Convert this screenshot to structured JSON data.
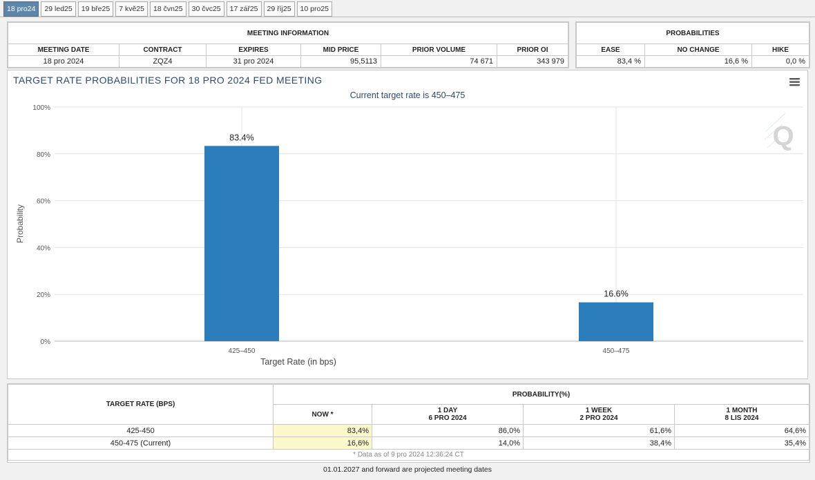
{
  "tabs": [
    "18 pro24",
    "29 led25",
    "19 bře25",
    "7 kvě25",
    "18 čvn25",
    "30 čvc25",
    "17 zář25",
    "29 říj25",
    "10 pro25"
  ],
  "meeting_info": {
    "title": "MEETING INFORMATION",
    "headers": [
      "MEETING DATE",
      "CONTRACT",
      "EXPIRES",
      "MID PRICE",
      "PRIOR VOLUME",
      "PRIOR OI"
    ],
    "values": [
      "18 pro 2024",
      "ZQZ4",
      "31 pro 2024",
      "95,5113",
      "74 671",
      "343 979"
    ]
  },
  "probabilities": {
    "title": "PROBABILITIES",
    "headers": [
      "EASE",
      "NO CHANGE",
      "HIKE"
    ],
    "values": [
      "83,4 %",
      "16,6 %",
      "0,0 %"
    ]
  },
  "chart_data": {
    "type": "bar",
    "title": "TARGET RATE PROBABILITIES FOR 18 PRO 2024 FED MEETING",
    "subtitle": "Current target rate is 450–475",
    "xlabel": "Target Rate (in bps)",
    "ylabel": "Probability",
    "categories": [
      "425–450",
      "450–475"
    ],
    "values": [
      83.4,
      16.6
    ],
    "data_labels": [
      "83.4%",
      "16.6%"
    ],
    "ylim": [
      0,
      100
    ],
    "yticks": [
      "0%",
      "20%",
      "40%",
      "60%",
      "80%",
      "100%"
    ],
    "color": "#2b7dbc",
    "grid": true
  },
  "bottom_table": {
    "rate_header": "TARGET RATE (BPS)",
    "prob_header": "PROBABILITY(%)",
    "cols": [
      {
        "l1": "NOW *",
        "l2": ""
      },
      {
        "l1": "1 DAY",
        "l2": "6 PRO 2024"
      },
      {
        "l1": "1 WEEK",
        "l2": "2 PRO 2024"
      },
      {
        "l1": "1 MONTH",
        "l2": "8 LIS 2024"
      }
    ],
    "rows": [
      {
        "rate": "425-450",
        "vals": [
          "83,4%",
          "86,0%",
          "61,6%",
          "64,6%"
        ]
      },
      {
        "rate": "450-475 (Current)",
        "vals": [
          "16,6%",
          "14,0%",
          "38,4%",
          "35,4%"
        ]
      }
    ],
    "footnote": "* Data as of 9 pro 2024 12:36:24 CT"
  },
  "projected_note": "01.01.2027 and forward are projected meeting dates"
}
